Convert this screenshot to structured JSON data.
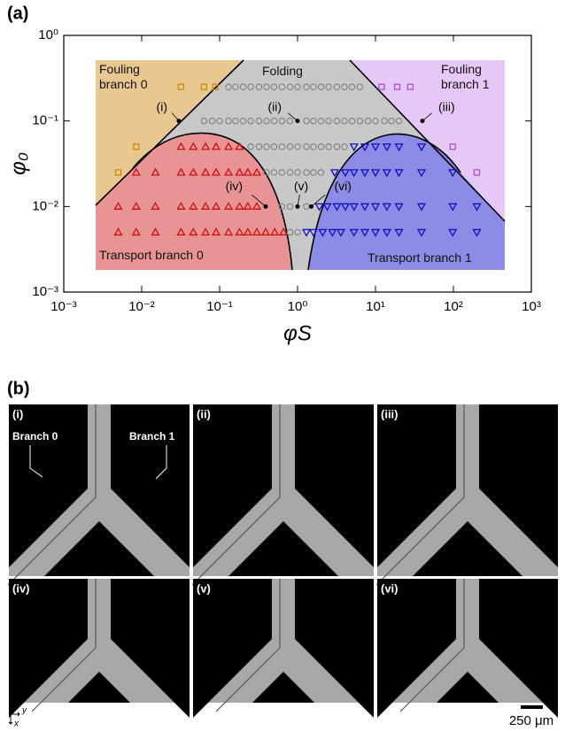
{
  "chart_data": {
    "type": "scatter",
    "panel_label": "(a)",
    "xlabel": "φS",
    "ylabel": "φ₀",
    "xscale": "log",
    "yscale": "log",
    "xlim": [
      0.001,
      1000
    ],
    "ylim": [
      0.001,
      1
    ],
    "xticks": [
      {
        "value": 0.001,
        "label": "10⁻³"
      },
      {
        "value": 0.01,
        "label": "10⁻²"
      },
      {
        "value": 0.1,
        "label": "10⁻¹"
      },
      {
        "value": 1,
        "label": "10⁰"
      },
      {
        "value": 10,
        "label": "10¹"
      },
      {
        "value": 100,
        "label": "10²"
      },
      {
        "value": 1000,
        "label": "10³"
      }
    ],
    "yticks": [
      {
        "value": 0.001,
        "label": "10⁻³"
      },
      {
        "value": 0.01,
        "label": "10⁻²"
      },
      {
        "value": 0.1,
        "label": "10⁻¹"
      },
      {
        "value": 1,
        "label": "10⁰"
      }
    ],
    "series": [
      {
        "name": "Fouling branch 0",
        "color": "#d08a00",
        "marker": "square",
        "x": [
          0.005,
          0.0085,
          0.032,
          0.063,
          0.088
        ],
        "y": [
          0.025,
          0.05,
          0.25,
          0.25,
          0.25
        ]
      },
      {
        "name": "Folding",
        "color": "#808080",
        "marker": "circle",
        "x": [
          0.13,
          0.16,
          0.2,
          0.25,
          0.32,
          0.4,
          0.5,
          0.63,
          0.8,
          1,
          1.3,
          1.6,
          2,
          2.5,
          3.2,
          4,
          5,
          6.3,
          0.063,
          0.08,
          0.1,
          0.13,
          0.16,
          0.2,
          0.25,
          0.32,
          0.4,
          0.5,
          0.63,
          0.8,
          1.3,
          1.6,
          2,
          2.5,
          3.2,
          4,
          5,
          6.3,
          8,
          10,
          13,
          16,
          20,
          0.25,
          0.32,
          0.4,
          0.5,
          0.63,
          0.8,
          1,
          1.3,
          1.6,
          2,
          2.5,
          3.2,
          4,
          0.4,
          0.5,
          0.63,
          0.8,
          1,
          1.3,
          1.6,
          2,
          0.63,
          0.8,
          1.3,
          0.8,
          1
        ],
        "y": [
          0.25,
          0.25,
          0.25,
          0.25,
          0.25,
          0.25,
          0.25,
          0.25,
          0.25,
          0.25,
          0.25,
          0.25,
          0.25,
          0.25,
          0.25,
          0.25,
          0.25,
          0.25,
          0.1,
          0.1,
          0.1,
          0.1,
          0.1,
          0.1,
          0.1,
          0.1,
          0.1,
          0.1,
          0.1,
          0.1,
          0.1,
          0.1,
          0.1,
          0.1,
          0.1,
          0.1,
          0.1,
          0.1,
          0.1,
          0.1,
          0.1,
          0.1,
          0.1,
          0.05,
          0.05,
          0.05,
          0.05,
          0.05,
          0.05,
          0.05,
          0.05,
          0.05,
          0.05,
          0.05,
          0.05,
          0.05,
          0.025,
          0.025,
          0.025,
          0.025,
          0.025,
          0.025,
          0.025,
          0.025,
          0.01,
          0.01,
          0.01,
          0.005,
          0.005
        ]
      },
      {
        "name": "Fouling branch 1",
        "color": "#b050d0",
        "marker": "square",
        "x": [
          12,
          19,
          28,
          98,
          200
        ],
        "y": [
          0.25,
          0.25,
          0.25,
          0.05,
          0.025
        ]
      },
      {
        "name": "Transport branch 0",
        "color": "#d01010",
        "marker": "triangle-up",
        "x": [
          0.032,
          0.046,
          0.066,
          0.09,
          0.13,
          0.18,
          0.0085,
          0.015,
          0.032,
          0.046,
          0.066,
          0.09,
          0.13,
          0.18,
          0.23,
          0.3,
          0.005,
          0.0085,
          0.015,
          0.032,
          0.046,
          0.066,
          0.09,
          0.13,
          0.18,
          0.23,
          0.3,
          0.005,
          0.0085,
          0.015,
          0.032,
          0.046,
          0.066,
          0.09,
          0.13,
          0.18,
          0.23,
          0.3,
          0.39,
          0.51,
          0.66
        ],
        "y": [
          0.05,
          0.05,
          0.05,
          0.05,
          0.05,
          0.05,
          0.025,
          0.025,
          0.025,
          0.025,
          0.025,
          0.025,
          0.025,
          0.025,
          0.025,
          0.025,
          0.01,
          0.01,
          0.01,
          0.01,
          0.01,
          0.01,
          0.01,
          0.01,
          0.01,
          0.01,
          0.01,
          0.005,
          0.005,
          0.005,
          0.005,
          0.005,
          0.005,
          0.005,
          0.005,
          0.005,
          0.005,
          0.005,
          0.005,
          0.005,
          0.005
        ]
      },
      {
        "name": "Transport branch 1",
        "color": "#1010c0",
        "marker": "triangle-down",
        "x": [
          5.3,
          7.3,
          10,
          14,
          20,
          39,
          3,
          4.1,
          5.3,
          7.3,
          10,
          14,
          20,
          39,
          98,
          1.9,
          2.4,
          3.2,
          4.1,
          5.3,
          7.3,
          10,
          14,
          20,
          39,
          98,
          200,
          1.3,
          1.6,
          2.1,
          2.8,
          3.6,
          5.3,
          7.3,
          10,
          14,
          20,
          39,
          98,
          200
        ],
        "y": [
          0.05,
          0.05,
          0.05,
          0.05,
          0.05,
          0.05,
          0.025,
          0.025,
          0.025,
          0.025,
          0.025,
          0.025,
          0.025,
          0.025,
          0.025,
          0.01,
          0.01,
          0.01,
          0.01,
          0.01,
          0.01,
          0.01,
          0.01,
          0.01,
          0.01,
          0.01,
          0.01,
          0.005,
          0.005,
          0.005,
          0.005,
          0.005,
          0.005,
          0.005,
          0.005,
          0.005,
          0.005,
          0.005,
          0.005,
          0.005
        ]
      }
    ],
    "annotations": [
      {
        "label": "(i)",
        "x": 0.03,
        "y": 0.1
      },
      {
        "label": "(ii)",
        "x": 1,
        "y": 0.1
      },
      {
        "label": "(iii)",
        "x": 40,
        "y": 0.1
      },
      {
        "label": "(iv)",
        "x": 0.39,
        "y": 0.01
      },
      {
        "label": "(v)",
        "x": 1,
        "y": 0.01
      },
      {
        "label": "(vi)",
        "x": 1.5,
        "y": 0.01
      }
    ]
  },
  "panel_b": {
    "label": "(b)",
    "panels": [
      "(i)",
      "(ii)",
      "(iii)",
      "(iv)",
      "(v)",
      "(vi)"
    ],
    "branch_labels": [
      "Branch 0",
      "Branch 1"
    ],
    "scale_bar": "250 μm",
    "axis_x": "x",
    "axis_y": "y"
  }
}
